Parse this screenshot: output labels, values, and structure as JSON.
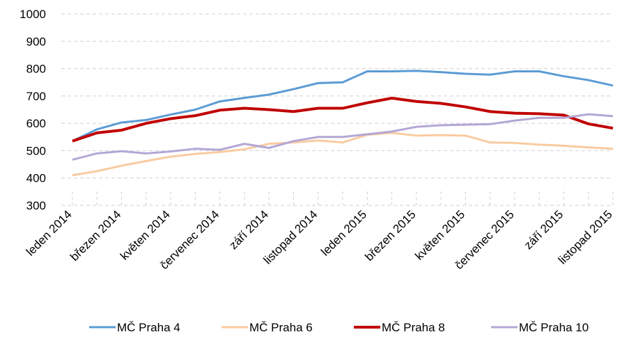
{
  "chart_data": {
    "type": "line",
    "categories": [
      "leden 2014",
      null,
      "březen 2014",
      null,
      "květen 2014",
      null,
      "červenec 2014",
      null,
      "září 2014",
      null,
      "listopad 2014",
      null,
      "leden 2015",
      null,
      "březen 2015",
      null,
      "květen 2015",
      null,
      "červenec 2015",
      null,
      "září 2015",
      null,
      "listopad 2015"
    ],
    "series": [
      {
        "name": "MČ Praha 4",
        "color": "#5b9bd5",
        "values": [
          535,
          578,
          603,
          612,
          632,
          650,
          680,
          693,
          705,
          725,
          747,
          750,
          790,
          790,
          792,
          787,
          781,
          778,
          790,
          790,
          772,
          758,
          738
        ]
      },
      {
        "name": "MČ Praha 6",
        "color": "#f8cba0",
        "values": [
          410,
          425,
          445,
          462,
          478,
          488,
          495,
          505,
          525,
          530,
          537,
          530,
          558,
          565,
          555,
          557,
          555,
          530,
          528,
          522,
          518,
          512,
          507
        ]
      },
      {
        "name": "MČ Praha 8",
        "color": "#c00000",
        "values": [
          535,
          565,
          575,
          600,
          617,
          628,
          648,
          655,
          650,
          643,
          655,
          655,
          675,
          692,
          680,
          673,
          660,
          643,
          637,
          635,
          630,
          598,
          582
        ]
      },
      {
        "name": "MČ Praha 10",
        "color": "#b4a7d6",
        "values": [
          467,
          490,
          498,
          490,
          497,
          507,
          503,
          525,
          510,
          535,
          550,
          550,
          560,
          570,
          587,
          593,
          595,
          597,
          610,
          620,
          620,
          633,
          626
        ]
      }
    ],
    "ylim": [
      300,
      1000
    ],
    "yticks": [
      300,
      400,
      500,
      600,
      700,
      800,
      900,
      1000
    ],
    "grid": true,
    "legend": "bottom"
  }
}
